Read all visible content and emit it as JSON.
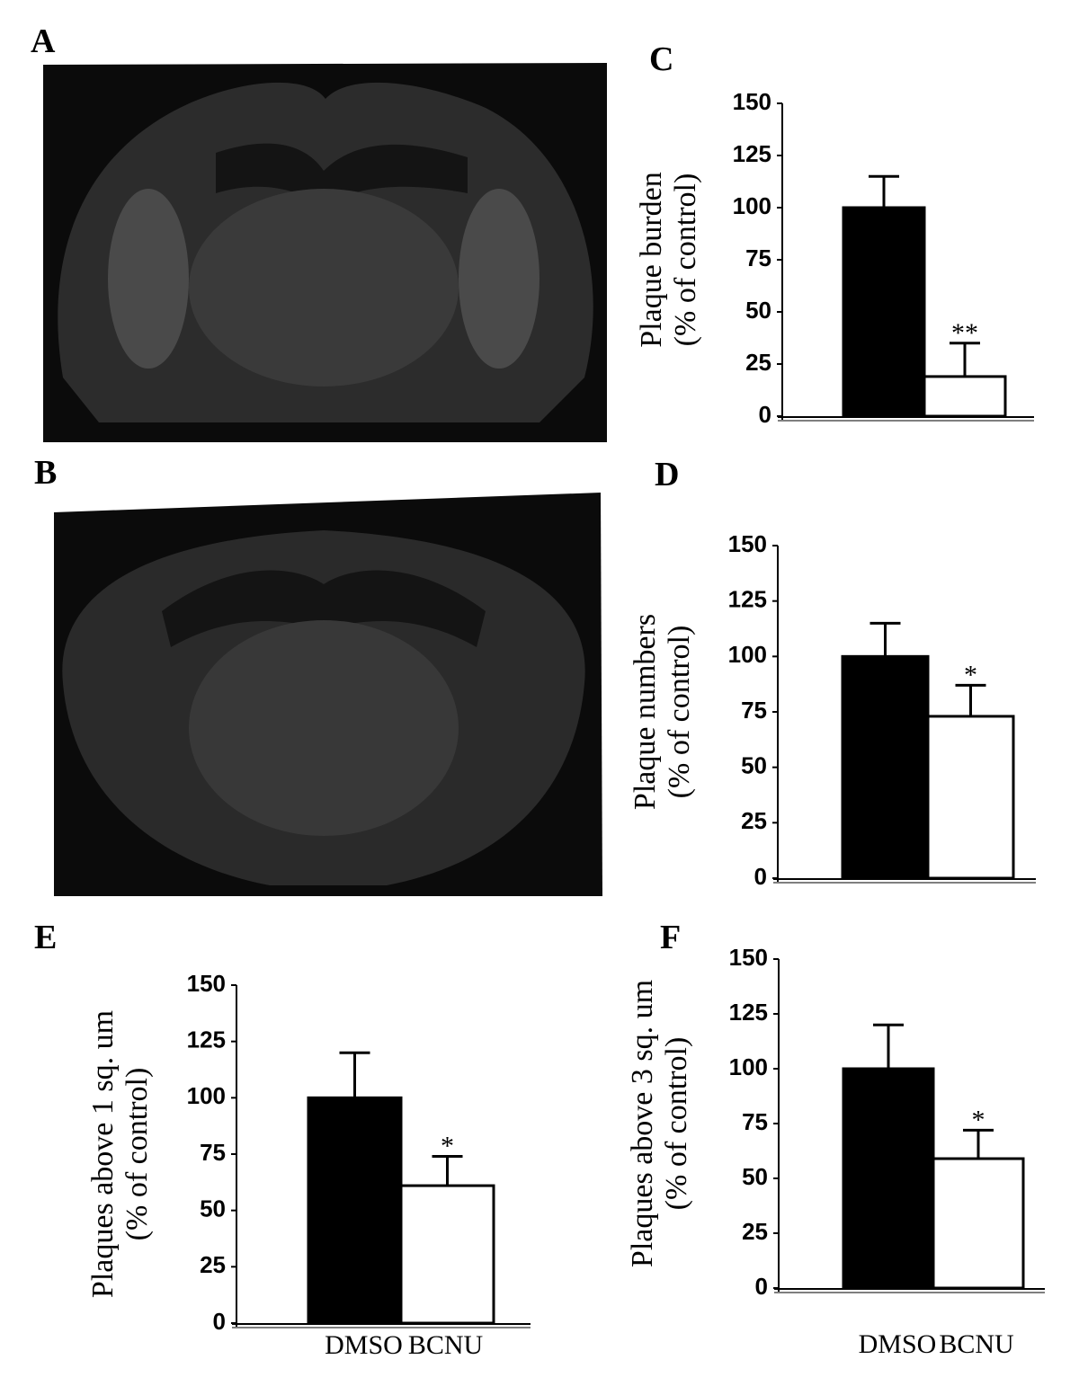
{
  "panel_labels": [
    "A",
    "B"
  ],
  "chart_data": [
    {
      "type": "bar",
      "panel": "C",
      "y_label": [
        "Plaque burden",
        "(% of control)"
      ],
      "categories": [
        null,
        null
      ],
      "values": [
        100,
        19
      ],
      "errors": [
        15,
        16
      ],
      "significance": [
        null,
        "**"
      ],
      "colors": [
        "#000000",
        "#ffffff"
      ],
      "ylim": [
        0,
        150
      ],
      "yticks": [
        0,
        25,
        50,
        75,
        100,
        125,
        150
      ],
      "grid": false
    },
    {
      "type": "bar",
      "panel": "D",
      "y_label": [
        "Plaque numbers",
        "(% of control)"
      ],
      "categories": [
        null,
        null
      ],
      "values": [
        100,
        73
      ],
      "errors": [
        15,
        14
      ],
      "significance": [
        null,
        "*"
      ],
      "colors": [
        "#000000",
        "#ffffff"
      ],
      "ylim": [
        0,
        150
      ],
      "yticks": [
        0,
        25,
        50,
        75,
        100,
        125,
        150
      ],
      "grid": false
    },
    {
      "type": "bar",
      "panel": "E",
      "y_label": [
        "Plaques above 1 sq. um",
        "(% of control)"
      ],
      "categories": [
        "DMSO",
        "BCNU"
      ],
      "values": [
        100,
        61
      ],
      "errors": [
        20,
        13
      ],
      "significance": [
        null,
        "*"
      ],
      "colors": [
        "#000000",
        "#ffffff"
      ],
      "ylim": [
        0,
        150
      ],
      "yticks": [
        0,
        25,
        50,
        75,
        100,
        125,
        150
      ],
      "grid": false
    },
    {
      "type": "bar",
      "panel": "F",
      "y_label": [
        "Plaques above 3 sq. um",
        "(% of control)"
      ],
      "categories": [
        "DMSO",
        "BCNU"
      ],
      "values": [
        100,
        59
      ],
      "errors": [
        20,
        13
      ],
      "significance": [
        null,
        "*"
      ],
      "colors": [
        "#000000",
        "#ffffff"
      ],
      "ylim": [
        0,
        150
      ],
      "yticks": [
        0,
        25,
        50,
        75,
        100,
        125,
        150
      ],
      "grid": false
    }
  ]
}
